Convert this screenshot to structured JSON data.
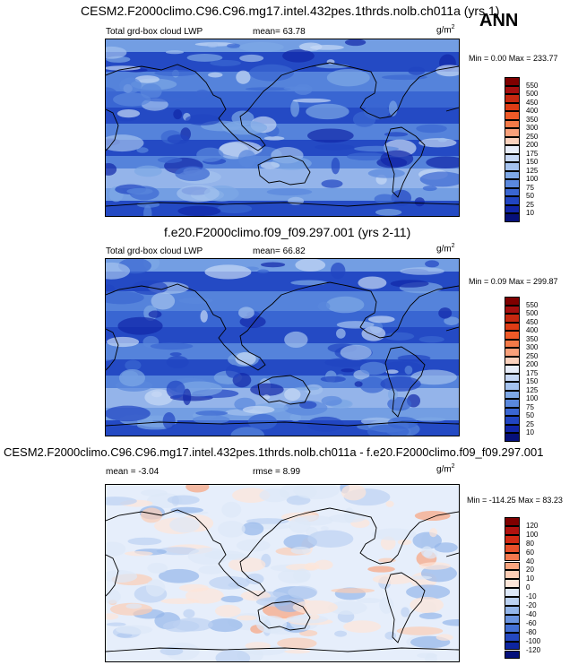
{
  "season": "ANN",
  "panels": [
    {
      "title": "CESM2.F2000climo.C96.C96.mg17.intel.432pes.1thrds.nolb.ch011a (yrs 1)",
      "variable": "Total grd-box cloud LWP",
      "stat": "mean=  63.78",
      "units": "g/m",
      "units_sup": "2",
      "minmax": "Min =   0.00 Max = 233.77",
      "colorbar": {
        "levels": [
          "550",
          "500",
          "450",
          "400",
          "350",
          "300",
          "250",
          "200",
          "175",
          "150",
          "125",
          "100",
          "75",
          "50",
          "25",
          "10"
        ],
        "colors": [
          "#7f0000",
          "#a50f0f",
          "#c62810",
          "#de3c15",
          "#ef5a28",
          "#f47a48",
          "#f8a07a",
          "#fbd2bd",
          "#e8eefa",
          "#c6d8f5",
          "#a4c2ee",
          "#7ea8e6",
          "#5a88dd",
          "#3a66d2",
          "#2145c2",
          "#1126a8",
          "#06107a"
        ]
      }
    },
    {
      "title": "f.e20.F2000climo.f09_f09.297.001 (yrs 2-11)",
      "variable": "Total grd-box cloud LWP",
      "stat": "mean=  66.82",
      "units": "g/m",
      "units_sup": "2",
      "minmax": "Min =   0.09 Max = 299.87",
      "colorbar": {
        "levels": [
          "550",
          "500",
          "450",
          "400",
          "350",
          "300",
          "250",
          "200",
          "175",
          "150",
          "125",
          "100",
          "75",
          "50",
          "25",
          "10"
        ],
        "colors": [
          "#7f0000",
          "#a50f0f",
          "#c62810",
          "#de3c15",
          "#ef5a28",
          "#f47a48",
          "#f8a07a",
          "#fbd2bd",
          "#e8eefa",
          "#c6d8f5",
          "#a4c2ee",
          "#7ea8e6",
          "#5a88dd",
          "#3a66d2",
          "#2145c2",
          "#1126a8",
          "#06107a"
        ]
      }
    },
    {
      "title": "CESM2.F2000climo.C96.C96.mg17.intel.432pes.1thrds.nolb.ch011a - f.e20.F2000climo.f09_f09.297.001",
      "variable": "",
      "stat": "mean =  -3.04",
      "rmse": "rmse =   8.99",
      "units": "g/m",
      "units_sup": "2",
      "minmax": "Min = -114.25 Max =  83.23",
      "colorbar": {
        "levels": [
          "120",
          "100",
          "80",
          "60",
          "40",
          "20",
          "10",
          "0",
          "-10",
          "-20",
          "-40",
          "-60",
          "-80",
          "-100",
          "-120"
        ],
        "colors": [
          "#7f0000",
          "#b0120f",
          "#d12a14",
          "#e8502a",
          "#f3784e",
          "#f8a47f",
          "#fbcdb5",
          "#fde6d8",
          "#dde8f8",
          "#bcd2f2",
          "#94b6ea",
          "#6a94e0",
          "#4370d4",
          "#2448c0",
          "#0d25a0",
          "#04107a"
        ]
      }
    }
  ],
  "chart_data": [
    {
      "type": "heatmap",
      "title": "CESM2.F2000climo.C96.C96.mg17.intel.432pes.1thrds.nolb.ch011a (yrs 1)",
      "variable": "Total grd-box cloud LWP",
      "units": "g/m2",
      "mean": 63.78,
      "min": 0.0,
      "max": 233.77,
      "contour_levels": [
        10,
        25,
        50,
        75,
        100,
        125,
        150,
        175,
        200,
        250,
        300,
        350,
        400,
        450,
        500,
        550
      ]
    },
    {
      "type": "heatmap",
      "title": "f.e20.F2000climo.f09_f09.297.001 (yrs 2-11)",
      "variable": "Total grd-box cloud LWP",
      "units": "g/m2",
      "mean": 66.82,
      "min": 0.09,
      "max": 299.87,
      "contour_levels": [
        10,
        25,
        50,
        75,
        100,
        125,
        150,
        175,
        200,
        250,
        300,
        350,
        400,
        450,
        500,
        550
      ]
    },
    {
      "type": "heatmap",
      "title": "CESM2.F2000climo.C96.C96.mg17.intel.432pes.1thrds.nolb.ch011a - f.e20.F2000climo.f09_f09.297.001",
      "units": "g/m2",
      "mean": -3.04,
      "rmse": 8.99,
      "min": -114.25,
      "max": 83.23,
      "contour_levels": [
        -120,
        -100,
        -80,
        -60,
        -40,
        -20,
        -10,
        0,
        10,
        20,
        40,
        60,
        80,
        100,
        120
      ]
    }
  ]
}
